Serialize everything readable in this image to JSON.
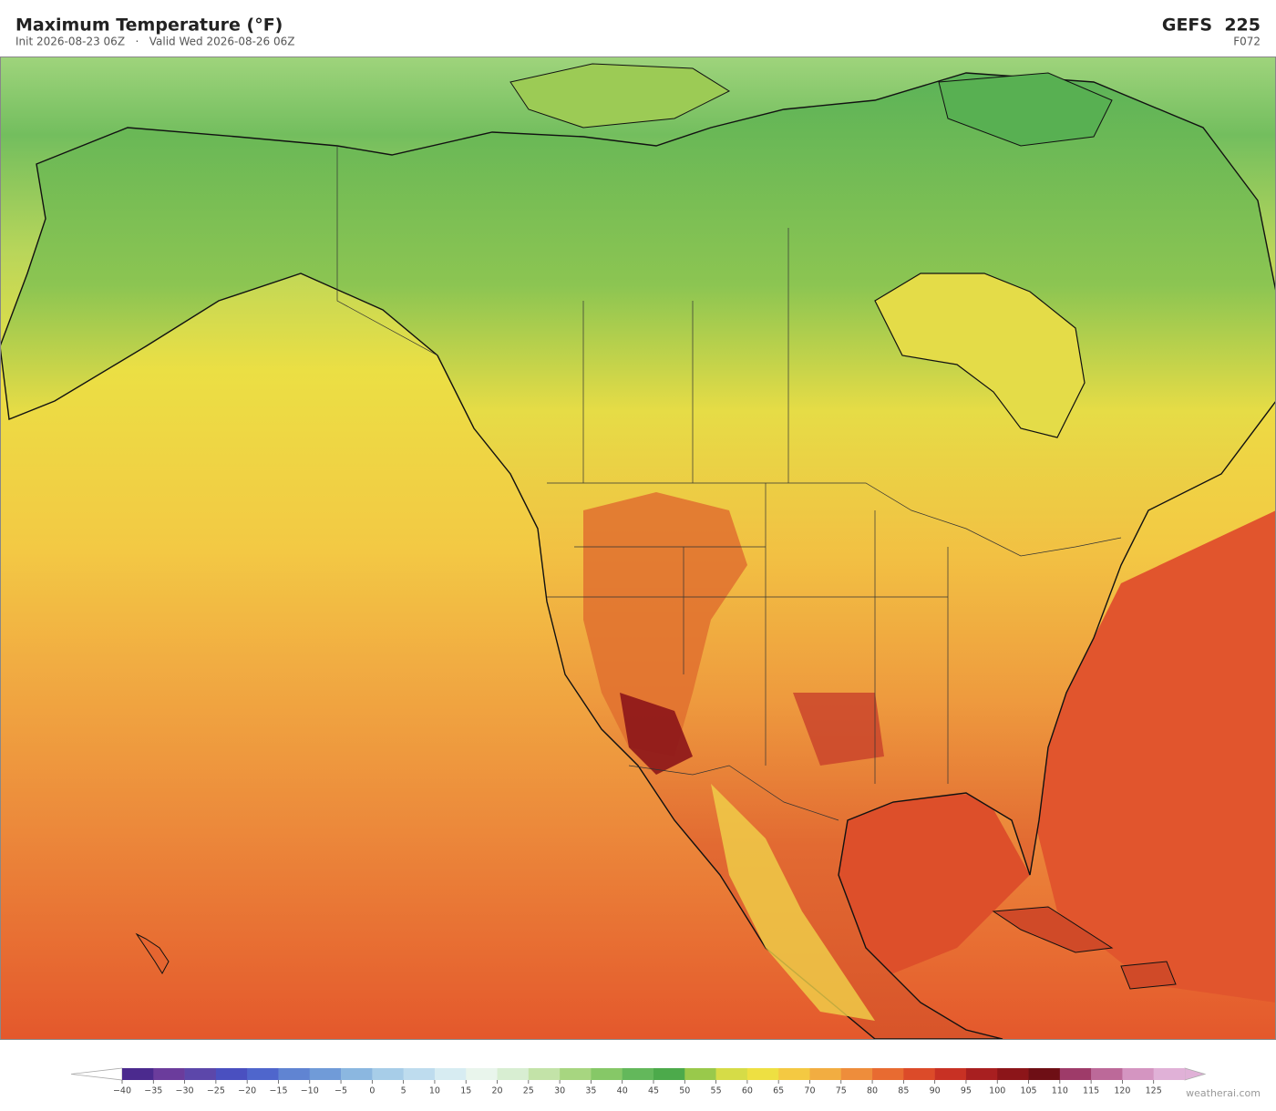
{
  "header": {
    "title": "Maximum Temperature  (°F)",
    "subtitle": "Init 2026-08-23 06Z   ·   Valid Wed 2026-08-26 06Z",
    "model": "GEFS  225",
    "forecast_hour": "F072"
  },
  "colorbar": {
    "lim": [
      -40,
      130
    ],
    "ticks": [
      {
        "value": -40,
        "label": "−40"
      },
      {
        "value": -35,
        "label": "−35"
      },
      {
        "value": -30,
        "label": "−30"
      },
      {
        "value": -25,
        "label": "−25"
      },
      {
        "value": -20,
        "label": "−20"
      },
      {
        "value": -15,
        "label": "−15"
      },
      {
        "value": -10,
        "label": "−10"
      },
      {
        "value": -5,
        "label": "−5"
      },
      0,
      5,
      10,
      15,
      20,
      25,
      30,
      35,
      40,
      45,
      50,
      55,
      60,
      65,
      70,
      75,
      80,
      85,
      90,
      95,
      100,
      105,
      110,
      115,
      120,
      125
    ],
    "colors": [
      "#4b2a8e",
      "#6b3c9c",
      "#5c47aa",
      "#4a50c0",
      "#4f66cc",
      "#6084d2",
      "#709bd8",
      "#8bb7e0",
      "#a7cde8",
      "#bedcee",
      "#d7ecf2",
      "#e9f5ec",
      "#d8eed2",
      "#c3e3a8",
      "#a7d680",
      "#86c867",
      "#63b85b",
      "#4caa4b",
      "#99c94b",
      "#d6dc47",
      "#eee042",
      "#f4c942",
      "#f2ad41",
      "#ee8d3b",
      "#e86b31",
      "#dc4b29",
      "#c83124",
      "#a81f20",
      "#8c1519",
      "#6e0f15",
      "#9e3b69",
      "#bc6999",
      "#d495c1",
      "#e0b1d7"
    ]
  },
  "watermark": "weatherai.com"
}
